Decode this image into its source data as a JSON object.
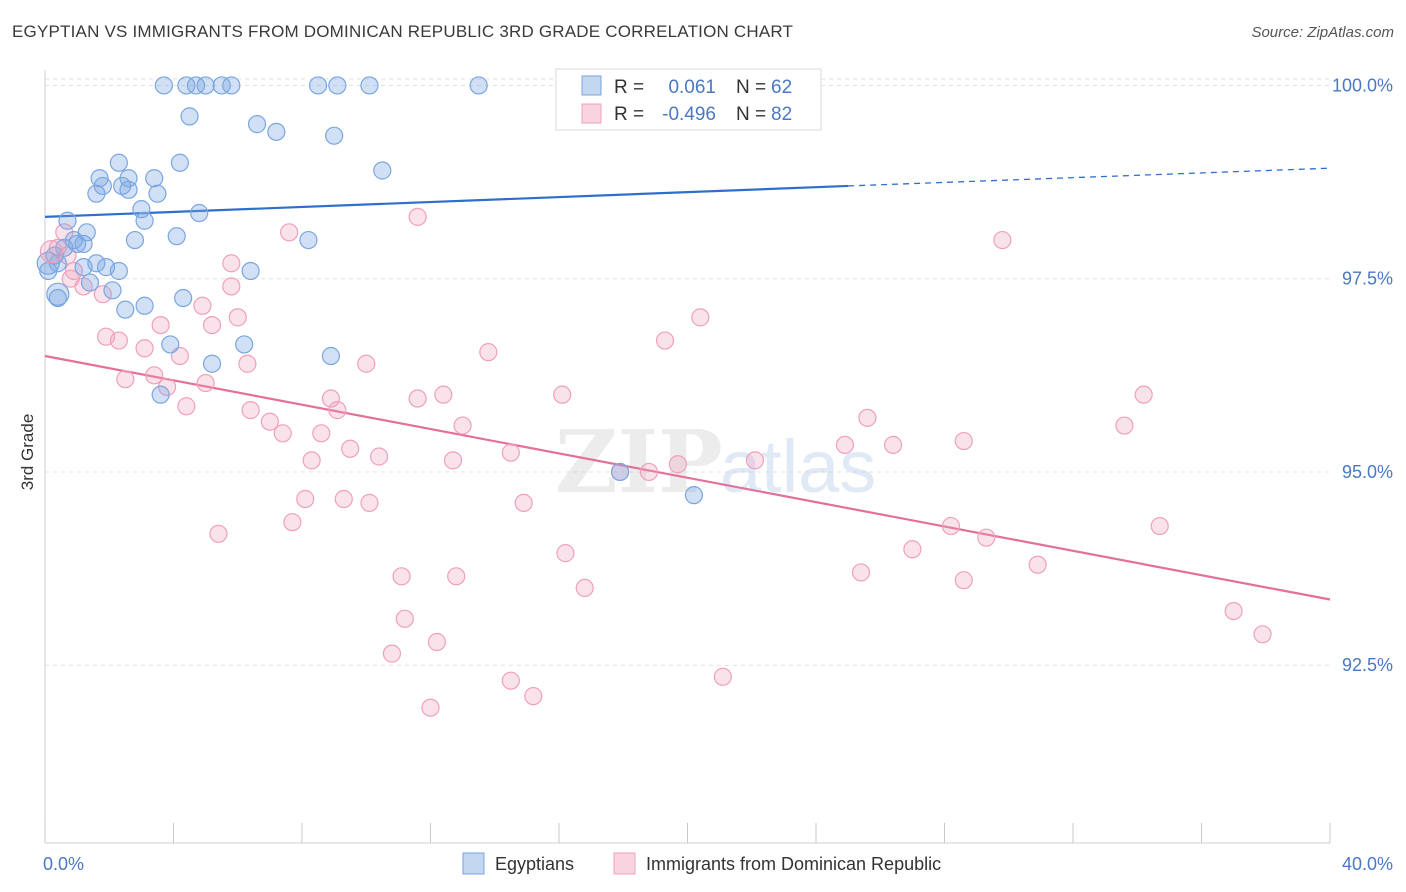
{
  "title": "EGYPTIAN VS IMMIGRANTS FROM DOMINICAN REPUBLIC 3RD GRADE CORRELATION CHART",
  "source": "Source: ZipAtlas.com",
  "watermark": {
    "zip": "ZIP",
    "atlas": "atlas"
  },
  "colors": {
    "blue": "#7aa6e0",
    "blue_fill": "rgba(122,166,224,0.35)",
    "blue_line": "#2f6fcc",
    "pink": "#f0a0bc",
    "pink_fill": "rgba(240,160,188,0.3)",
    "pink_line": "#e46f99",
    "tick": "#4a78c2"
  },
  "legend": {
    "r_label": "R =",
    "n_label": "N =",
    "rows": [
      {
        "r": "0.061",
        "n": "62"
      },
      {
        "r": "-0.496",
        "n": "82"
      }
    ]
  },
  "chart_data": {
    "type": "scatter",
    "xlabel": "",
    "ylabel": "3rd Grade",
    "xlim": [
      0.0,
      40.0
    ],
    "ylim": [
      90.2,
      100.2
    ],
    "x_tick_labels": [
      "0.0%",
      "40.0%"
    ],
    "y_ticks": [
      92.5,
      95.0,
      97.5,
      100.0
    ],
    "y_tick_labels": [
      "92.5%",
      "95.0%",
      "97.5%",
      "100.0%"
    ],
    "grid": true,
    "legend_position": "bottom-center",
    "series": [
      {
        "name": "Egyptians",
        "color": "#7aa6e0",
        "r": 0.061,
        "n": 62,
        "trend": {
          "x0": 0.0,
          "y0": 98.3,
          "x1": 25.0,
          "y1": 98.7,
          "dashed_to_x": 40.0,
          "dashed_to_y": 98.93
        },
        "points": [
          [
            3.7,
            100.0
          ],
          [
            4.4,
            100.0
          ],
          [
            4.7,
            100.0
          ],
          [
            5.0,
            100.0
          ],
          [
            5.5,
            100.0
          ],
          [
            5.8,
            100.0
          ],
          [
            8.5,
            100.0
          ],
          [
            9.1,
            100.0
          ],
          [
            10.1,
            100.0
          ],
          [
            13.5,
            100.0
          ],
          [
            18.0,
            100.0
          ],
          [
            4.5,
            99.6
          ],
          [
            6.6,
            99.5
          ],
          [
            7.2,
            99.4
          ],
          [
            9.0,
            99.35
          ],
          [
            2.3,
            99.0
          ],
          [
            4.2,
            99.0
          ],
          [
            10.5,
            98.9
          ],
          [
            1.7,
            98.8
          ],
          [
            2.6,
            98.8
          ],
          [
            3.4,
            98.8
          ],
          [
            1.8,
            98.7
          ],
          [
            2.4,
            98.7
          ],
          [
            2.6,
            98.65
          ],
          [
            3.5,
            98.6
          ],
          [
            1.6,
            98.6
          ],
          [
            3.0,
            98.4
          ],
          [
            4.8,
            98.35
          ],
          [
            0.7,
            98.25
          ],
          [
            3.1,
            98.25
          ],
          [
            1.3,
            98.1
          ],
          [
            4.1,
            98.05
          ],
          [
            0.9,
            98.0
          ],
          [
            2.8,
            98.0
          ],
          [
            8.2,
            98.0
          ],
          [
            1.0,
            97.95
          ],
          [
            1.2,
            97.95
          ],
          [
            0.6,
            97.9
          ],
          [
            0.3,
            97.8
          ],
          [
            0.4,
            97.7
          ],
          [
            1.6,
            97.7
          ],
          [
            1.9,
            97.65
          ],
          [
            2.3,
            97.6
          ],
          [
            1.2,
            97.65
          ],
          [
            0.1,
            97.6
          ],
          [
            6.4,
            97.6
          ],
          [
            1.4,
            97.45
          ],
          [
            2.1,
            97.35
          ],
          [
            0.4,
            97.25
          ],
          [
            4.3,
            97.25
          ],
          [
            3.1,
            97.15
          ],
          [
            2.5,
            97.1
          ],
          [
            3.9,
            96.65
          ],
          [
            6.2,
            96.65
          ],
          [
            8.9,
            96.5
          ],
          [
            5.2,
            96.4
          ],
          [
            3.6,
            96.0
          ],
          [
            17.9,
            95.0
          ],
          [
            20.2,
            94.7
          ]
        ]
      },
      {
        "name": "Immigrants from Dominican Republic",
        "color": "#f0a0bc",
        "r": -0.496,
        "n": 82,
        "trend": {
          "x0": 0.0,
          "y0": 96.5,
          "x1": 40.0,
          "y1": 93.35
        },
        "points": [
          [
            11.6,
            98.3
          ],
          [
            7.6,
            98.1
          ],
          [
            29.8,
            98.0
          ],
          [
            0.6,
            98.1
          ],
          [
            0.4,
            97.9
          ],
          [
            0.7,
            97.8
          ],
          [
            5.8,
            97.7
          ],
          [
            0.9,
            97.6
          ],
          [
            0.8,
            97.5
          ],
          [
            1.2,
            97.4
          ],
          [
            5.8,
            97.4
          ],
          [
            1.8,
            97.3
          ],
          [
            4.9,
            97.15
          ],
          [
            6.0,
            97.0
          ],
          [
            20.4,
            97.0
          ],
          [
            3.6,
            96.9
          ],
          [
            5.2,
            96.9
          ],
          [
            1.9,
            96.75
          ],
          [
            2.3,
            96.7
          ],
          [
            19.3,
            96.7
          ],
          [
            3.1,
            96.6
          ],
          [
            13.8,
            96.55
          ],
          [
            4.2,
            96.5
          ],
          [
            6.3,
            96.4
          ],
          [
            10.0,
            96.4
          ],
          [
            2.5,
            96.2
          ],
          [
            3.4,
            96.25
          ],
          [
            5.0,
            96.15
          ],
          [
            3.8,
            96.1
          ],
          [
            12.4,
            96.0
          ],
          [
            11.6,
            95.95
          ],
          [
            8.9,
            95.95
          ],
          [
            16.1,
            96.0
          ],
          [
            34.2,
            96.0
          ],
          [
            4.4,
            95.85
          ],
          [
            6.4,
            95.8
          ],
          [
            9.1,
            95.8
          ],
          [
            25.6,
            95.7
          ],
          [
            7.0,
            95.65
          ],
          [
            13.0,
            95.6
          ],
          [
            33.6,
            95.6
          ],
          [
            8.6,
            95.5
          ],
          [
            7.4,
            95.5
          ],
          [
            28.6,
            95.4
          ],
          [
            24.9,
            95.35
          ],
          [
            9.5,
            95.3
          ],
          [
            14.5,
            95.25
          ],
          [
            26.4,
            95.35
          ],
          [
            10.4,
            95.2
          ],
          [
            22.1,
            95.15
          ],
          [
            8.3,
            95.15
          ],
          [
            12.7,
            95.15
          ],
          [
            19.7,
            95.1
          ],
          [
            17.9,
            95.0
          ],
          [
            18.8,
            95.0
          ],
          [
            8.1,
            94.65
          ],
          [
            9.3,
            94.65
          ],
          [
            10.1,
            94.6
          ],
          [
            14.9,
            94.6
          ],
          [
            5.4,
            94.2
          ],
          [
            7.7,
            94.35
          ],
          [
            28.2,
            94.3
          ],
          [
            29.3,
            94.15
          ],
          [
            34.7,
            94.3
          ],
          [
            27.0,
            94.0
          ],
          [
            16.2,
            93.95
          ],
          [
            30.9,
            93.8
          ],
          [
            25.4,
            93.7
          ],
          [
            11.1,
            93.65
          ],
          [
            12.8,
            93.65
          ],
          [
            28.6,
            93.6
          ],
          [
            16.8,
            93.5
          ],
          [
            11.2,
            93.1
          ],
          [
            37.0,
            93.2
          ],
          [
            12.2,
            92.8
          ],
          [
            37.9,
            92.9
          ],
          [
            10.8,
            92.65
          ],
          [
            14.5,
            92.3
          ],
          [
            15.2,
            92.1
          ],
          [
            21.1,
            92.35
          ],
          [
            12.0,
            91.95
          ]
        ]
      }
    ],
    "big_points": [
      {
        "series": 0,
        "x": 0.1,
        "y": 97.7
      },
      {
        "series": 0,
        "x": 0.4,
        "y": 97.3
      },
      {
        "series": 1,
        "x": 0.2,
        "y": 97.85
      }
    ]
  }
}
